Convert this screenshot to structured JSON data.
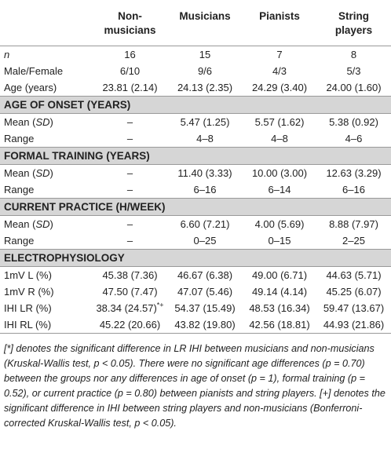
{
  "table": {
    "columns": [
      "Non-musicians",
      "Musicians",
      "Pianists",
      "String players"
    ],
    "rows": [
      {
        "label_italic": "n",
        "cells": [
          "16",
          "15",
          "7",
          "8"
        ]
      },
      {
        "label": [
          "Male/Female"
        ],
        "cells": [
          "6/10",
          "9/6",
          "4/3",
          "5/3"
        ]
      },
      {
        "label": [
          "Age (years)"
        ],
        "cells": [
          "23.81 (2.14)",
          "24.13 (2.35)",
          "24.29 (3.40)",
          "24.00 (1.60)"
        ]
      },
      {
        "section": "AGE OF ONSET (YEARS)"
      },
      {
        "label": [
          "Mean (",
          "SD",
          ")"
        ],
        "cells": [
          "–",
          "5.47 (1.25)",
          "5.57 (1.62)",
          "5.38 (0.92)"
        ]
      },
      {
        "label": [
          "Range"
        ],
        "cells": [
          "–",
          "4–8",
          "4–8",
          "4–6"
        ]
      },
      {
        "section": "FORMAL TRAINING (YEARS)"
      },
      {
        "label": [
          "Mean (",
          "SD",
          ")"
        ],
        "cells": [
          "–",
          "11.40 (3.33)",
          "10.00 (3.00)",
          "12.63 (3.29)"
        ]
      },
      {
        "label": [
          "Range"
        ],
        "cells": [
          "–",
          "6–16",
          "6–14",
          "6–16"
        ]
      },
      {
        "section": "CURRENT PRACTICE (H/WEEK)"
      },
      {
        "label": [
          "Mean (",
          "SD",
          ")"
        ],
        "cells": [
          "–",
          "6.60 (7.21)",
          "4.00 (5.69)",
          "8.88 (7.97)"
        ]
      },
      {
        "label": [
          "Range"
        ],
        "cells": [
          "–",
          "0–25",
          "0–15",
          "2–25"
        ]
      },
      {
        "section": "ELECTROPHYSIOLOGY"
      },
      {
        "label": [
          "1mV L (%)"
        ],
        "cells": [
          "45.38 (7.36)",
          "46.67 (6.38)",
          "49.00 (6.71)",
          "44.63 (5.71)"
        ]
      },
      {
        "label": [
          "1mV R (%)"
        ],
        "cells": [
          "47.50 (7.47)",
          "47.07 (5.46)",
          "49.14 (4.14)",
          "45.25 (6.07)"
        ]
      },
      {
        "label": [
          "IHI LR (%)"
        ],
        "cells": [
          {
            "text": "38.34 (24.57)",
            "sup": "*+"
          },
          "54.37 (15.49)",
          "48.53 (16.34)",
          "59.47 (13.67)"
        ]
      },
      {
        "label": [
          "IHI RL (%)"
        ],
        "cells": [
          "45.22 (20.66)",
          "43.82 (19.80)",
          "42.56 (18.81)",
          "44.93 (21.86)"
        ]
      }
    ],
    "footnote": "[*] denotes the significant difference in LR IHI between musicians and non-musicians (Kruskal-Wallis test, p < 0.05). There were no significant age differences (p = 0.70) between the groups nor any differences in age of onset (p = 1), formal training (p = 0.52), or current practice (p = 0.80) between pianists and string players. [+] denotes the significant difference in IHI between string players and non-musicians (Bonferroni-corrected Kruskal-Wallis test, p < 0.05)."
  }
}
